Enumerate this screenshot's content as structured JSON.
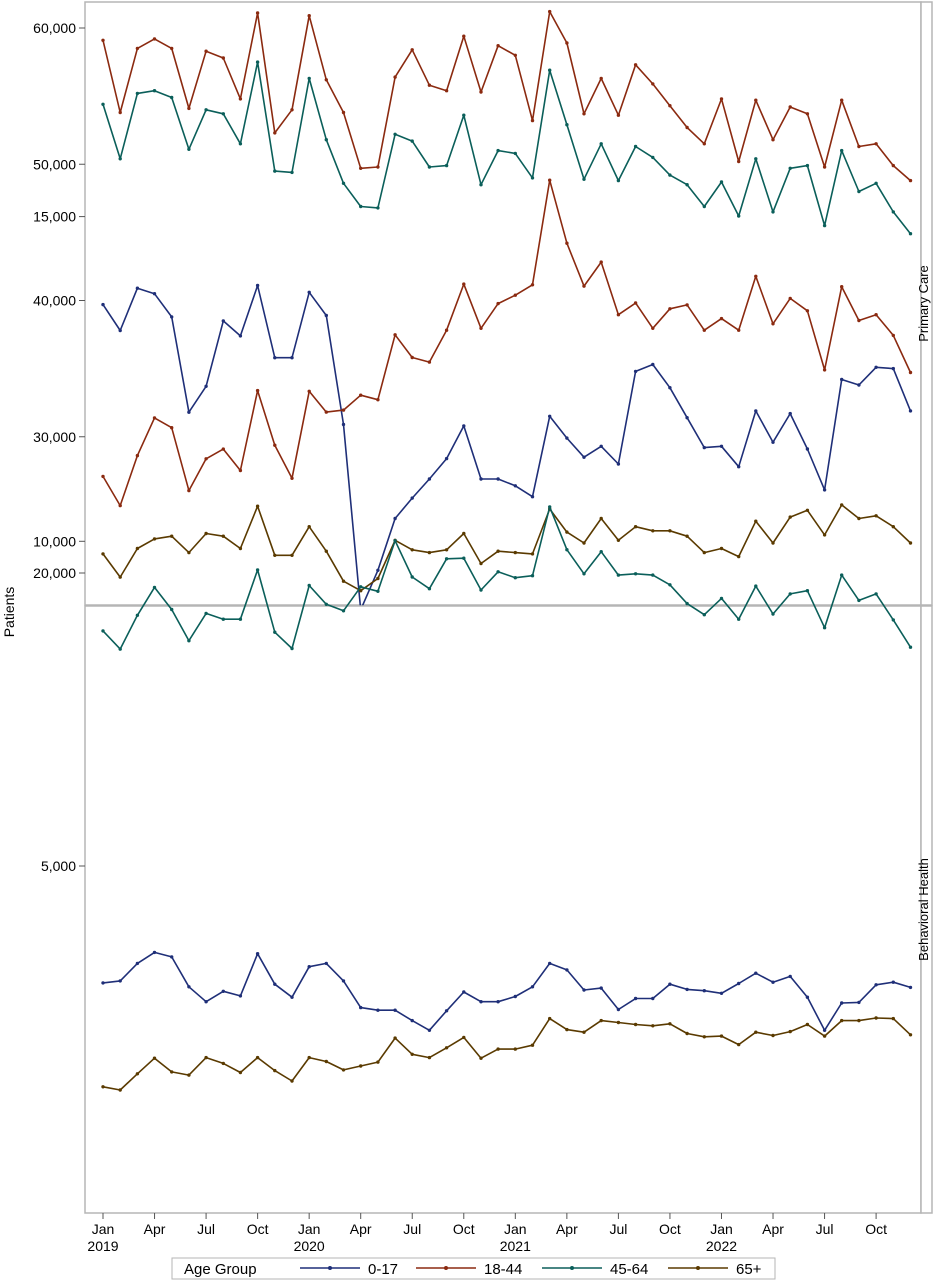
{
  "chart_data": {
    "type": "line",
    "ylabel": "Patients",
    "x_tick_labels": [
      "Jan\n2019",
      "Apr",
      "Jul",
      "Oct",
      "Jan\n2020",
      "Apr",
      "Jul",
      "Oct",
      "Jan\n2021",
      "Apr",
      "Jul",
      "Oct",
      "Jan\n2022",
      "Apr",
      "Jul",
      "Oct"
    ],
    "x_tick_months": [
      0,
      3,
      6,
      9,
      12,
      15,
      18,
      21,
      24,
      27,
      30,
      33,
      36,
      39,
      42,
      45
    ],
    "x_start": "2019-01",
    "x_end": "2022-12",
    "legend": {
      "title": "Age Group",
      "position": "bottom",
      "entries": [
        "0-17",
        "18-44",
        "45-64",
        "65+"
      ]
    },
    "series_colors": {
      "0-17": "#1f2f78",
      "18-44": "#8b2a10",
      "45-64": "#0b5f5a",
      "65+": "#5a3a00"
    },
    "panels": [
      {
        "label": "Primary Care",
        "y_ticks": [
          20000,
          30000,
          40000,
          50000,
          60000
        ],
        "y_tick_labels": [
          "20,000",
          "30,000",
          "40,000",
          "50,000",
          "60,000"
        ],
        "series": [
          {
            "name": "0-17",
            "values": [
              39700,
              37800,
              40900,
              40500,
              38800,
              31800,
              33700,
              38500,
              37400,
              41100,
              35800,
              35800,
              40600,
              38900,
              30900,
              17300,
              20200,
              24000,
              25500,
              26900,
              28400,
              30800,
              26900,
              26900,
              26400,
              25600,
              31500,
              29900,
              28500,
              29300,
              28000,
              34800,
              35300,
              33600,
              31400,
              29200,
              29300,
              27800,
              31900,
              29600,
              31700,
              29100,
              26100,
              34200,
              33800,
              35100,
              35000,
              31900
            ]
          },
          {
            "name": "18-44",
            "values": [
              59100,
              53800,
              58500,
              59200,
              58500,
              54100,
              58300,
              57800,
              54800,
              61100,
              52300,
              54000,
              60900,
              56200,
              53800,
              49700,
              49800,
              56400,
              58400,
              55800,
              55400,
              59400,
              55300,
              58700,
              58000,
              53200,
              61200,
              58900,
              53700,
              56300,
              53600,
              57300,
              55900,
              54300,
              52700,
              51500,
              54800,
              50200,
              54700,
              51800,
              54200,
              53700,
              49800,
              54700,
              51300,
              51500,
              49900,
              48800
            ]
          },
          {
            "name": "45-64",
            "values": [
              54400,
              50400,
              55200,
              55400,
              54900,
              51100,
              54000,
              53700,
              51500,
              57500,
              49500,
              49400,
              56300,
              51800,
              48600,
              46900,
              46800,
              52200,
              51700,
              49800,
              49900,
              53600,
              48500,
              51000,
              50800,
              49000,
              56900,
              52900,
              48900,
              51500,
              48800,
              51300,
              50500,
              49200,
              48500,
              46900,
              48700,
              46200,
              50400,
              46500,
              49700,
              49900,
              45500,
              51000,
              48000,
              48600,
              46500,
              44900
            ]
          },
          {
            "name": "65+",
            "values": [
              21400,
              19700,
              21800,
              22500,
              22700,
              21500,
              22900,
              22700,
              21800,
              24900,
              21300,
              21300,
              23400,
              21600,
              19400,
              18700,
              19600,
              22400,
              21700,
              21500,
              21700,
              22900,
              20700,
              21600,
              21500,
              21400,
              24700,
              23000,
              22200,
              24000,
              22400,
              23400,
              23100,
              23100,
              22700,
              21500,
              21800,
              21200,
              23800,
              22200,
              24100,
              24600,
              22800,
              25000,
              24000,
              24200,
              23400,
              22200
            ]
          }
        ]
      },
      {
        "label": "Behavioral Health",
        "y_ticks": [
          5000,
          10000,
          15000
        ],
        "y_tick_labels": [
          "5,000",
          "10,000",
          "15,000"
        ],
        "series": [
          {
            "name": "0-17",
            "values": [
              3200,
              3230,
              3500,
              3670,
              3600,
              3140,
              2910,
              3070,
              3000,
              3650,
              3180,
              2980,
              3450,
              3500,
              3230,
              2820,
              2780,
              2780,
              2620,
              2470,
              2770,
              3060,
              2910,
              2910,
              2990,
              3140,
              3500,
              3400,
              3090,
              3120,
              2790,
              2960,
              2960,
              3180,
              3100,
              3080,
              3040,
              3190,
              3350,
              3210,
              3300,
              2980,
              2470,
              2890,
              2900,
              3170,
              3210,
              3130
            ]
          },
          {
            "name": "18-44",
            "values": [
              11000,
              10550,
              11320,
              11900,
              11750,
              10780,
              11270,
              11420,
              11090,
              12320,
              11480,
              10970,
              12310,
              11990,
              12020,
              12250,
              12180,
              13180,
              12830,
              12760,
              13250,
              13960,
              13280,
              13660,
              13790,
              13950,
              15560,
              14590,
              13930,
              14300,
              13490,
              13670,
              13280,
              13580,
              13640,
              13250,
              13430,
              13250,
              14080,
              13350,
              13740,
              13550,
              12640,
              13920,
              13400,
              13490,
              13170,
              12600
            ]
          },
          {
            "name": "45-64",
            "values": [
              8620,
              8340,
              8860,
              9290,
              8950,
              8470,
              8890,
              8800,
              8800,
              9560,
              8600,
              8350,
              9320,
              9030,
              8930,
              9300,
              9230,
              10010,
              9450,
              9270,
              9730,
              9740,
              9250,
              9530,
              9440,
              9470,
              10530,
              9870,
              9500,
              9840,
              9480,
              9500,
              9480,
              9330,
              9040,
              8870,
              9120,
              8800,
              9310,
              8880,
              9190,
              9240,
              8670,
              9480,
              9090,
              9190,
              8790,
              8370
            ]
          },
          {
            "name": "65+",
            "values": [
              1600,
              1550,
              1800,
              2040,
              1830,
              1780,
              2050,
              1960,
              1820,
              2050,
              1850,
              1690,
              2050,
              1990,
              1860,
              1920,
              1980,
              2350,
              2100,
              2050,
              2200,
              2360,
              2040,
              2180,
              2180,
              2240,
              2650,
              2480,
              2440,
              2620,
              2590,
              2560,
              2540,
              2570,
              2420,
              2370,
              2380,
              2250,
              2440,
              2390,
              2450,
              2560,
              2380,
              2620,
              2620,
              2660,
              2650,
              2400
            ]
          }
        ]
      }
    ]
  }
}
